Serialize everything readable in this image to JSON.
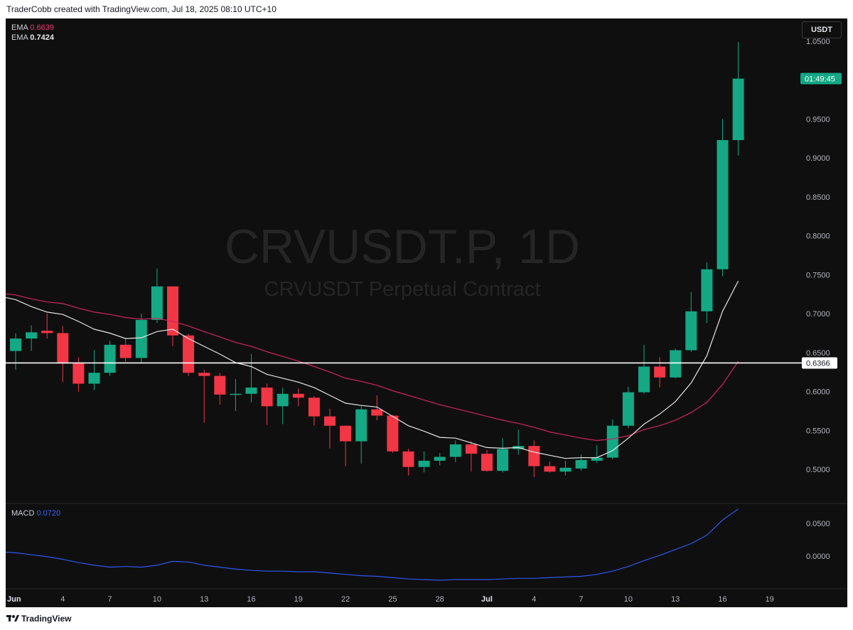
{
  "header": {
    "credit": "TraderCobb created with TradingView.com, Jul 18, 2025 08:10 UTC+10"
  },
  "legend": {
    "ema_label_a": "EMA",
    "ema_value_a": "0.6639",
    "ema_label_b": "EMA",
    "ema_value_b": "0.7424",
    "macd_label": "MACD",
    "macd_value": "0.0720"
  },
  "currency_button": "USDT",
  "countdown": "01:49:45",
  "footer": {
    "brand": "TradingView"
  },
  "chart_data": {
    "type": "candlestick",
    "title": "CRVUSDT.P, 1D",
    "subtitle": "CRVUSDT Perpetual Contract",
    "y_ticks": [
      "1.0500",
      "0.9500",
      "0.9000",
      "0.8500",
      "0.8000",
      "0.7500",
      "0.7000",
      "0.6500",
      "0.6000",
      "0.5500",
      "0.5000"
    ],
    "y_tick_values": [
      1.05,
      0.95,
      0.9,
      0.85,
      0.8,
      0.75,
      0.7,
      0.65,
      0.6,
      0.55,
      0.5
    ],
    "ylim": [
      0.46,
      1.07
    ],
    "x_ticks": [
      {
        "label": "Jun",
        "i": 0
      },
      {
        "label": "4",
        "i": 3
      },
      {
        "label": "7",
        "i": 6
      },
      {
        "label": "10",
        "i": 9
      },
      {
        "label": "13",
        "i": 12
      },
      {
        "label": "16",
        "i": 15
      },
      {
        "label": "19",
        "i": 18
      },
      {
        "label": "22",
        "i": 21
      },
      {
        "label": "25",
        "i": 24
      },
      {
        "label": "28",
        "i": 27
      },
      {
        "label": "Jul",
        "i": 30
      },
      {
        "label": "4",
        "i": 33
      },
      {
        "label": "7",
        "i": 36
      },
      {
        "label": "10",
        "i": 39
      },
      {
        "label": "13",
        "i": 42
      },
      {
        "label": "16",
        "i": 45
      },
      {
        "label": "19",
        "i": 48
      }
    ],
    "horizontal_line": {
      "value": 0.6366,
      "label": "0.6366"
    },
    "candles": [
      {
        "o": 0.652,
        "h": 0.675,
        "l": 0.628,
        "c": 0.668
      },
      {
        "o": 0.668,
        "h": 0.685,
        "l": 0.652,
        "c": 0.676
      },
      {
        "o": 0.678,
        "h": 0.7,
        "l": 0.668,
        "c": 0.675
      },
      {
        "o": 0.675,
        "h": 0.684,
        "l": 0.612,
        "c": 0.636
      },
      {
        "o": 0.636,
        "h": 0.644,
        "l": 0.6,
        "c": 0.61
      },
      {
        "o": 0.61,
        "h": 0.653,
        "l": 0.602,
        "c": 0.624
      },
      {
        "o": 0.624,
        "h": 0.665,
        "l": 0.62,
        "c": 0.66
      },
      {
        "o": 0.66,
        "h": 0.668,
        "l": 0.638,
        "c": 0.643
      },
      {
        "o": 0.643,
        "h": 0.7,
        "l": 0.637,
        "c": 0.692
      },
      {
        "o": 0.692,
        "h": 0.758,
        "l": 0.688,
        "c": 0.735
      },
      {
        "o": 0.735,
        "h": 0.735,
        "l": 0.658,
        "c": 0.672
      },
      {
        "o": 0.672,
        "h": 0.674,
        "l": 0.62,
        "c": 0.624
      },
      {
        "o": 0.624,
        "h": 0.628,
        "l": 0.56,
        "c": 0.62
      },
      {
        "o": 0.62,
        "h": 0.624,
        "l": 0.583,
        "c": 0.596
      },
      {
        "o": 0.596,
        "h": 0.616,
        "l": 0.575,
        "c": 0.597
      },
      {
        "o": 0.597,
        "h": 0.648,
        "l": 0.586,
        "c": 0.605
      },
      {
        "o": 0.605,
        "h": 0.61,
        "l": 0.557,
        "c": 0.581
      },
      {
        "o": 0.581,
        "h": 0.605,
        "l": 0.558,
        "c": 0.597
      },
      {
        "o": 0.597,
        "h": 0.604,
        "l": 0.581,
        "c": 0.592
      },
      {
        "o": 0.592,
        "h": 0.594,
        "l": 0.556,
        "c": 0.568
      },
      {
        "o": 0.568,
        "h": 0.578,
        "l": 0.527,
        "c": 0.556
      },
      {
        "o": 0.556,
        "h": 0.556,
        "l": 0.504,
        "c": 0.536
      },
      {
        "o": 0.536,
        "h": 0.581,
        "l": 0.507,
        "c": 0.577
      },
      {
        "o": 0.577,
        "h": 0.595,
        "l": 0.563,
        "c": 0.569
      },
      {
        "o": 0.569,
        "h": 0.57,
        "l": 0.521,
        "c": 0.523
      },
      {
        "o": 0.523,
        "h": 0.526,
        "l": 0.492,
        "c": 0.503
      },
      {
        "o": 0.503,
        "h": 0.523,
        "l": 0.496,
        "c": 0.511
      },
      {
        "o": 0.511,
        "h": 0.521,
        "l": 0.505,
        "c": 0.516
      },
      {
        "o": 0.516,
        "h": 0.537,
        "l": 0.509,
        "c": 0.532
      },
      {
        "o": 0.532,
        "h": 0.536,
        "l": 0.497,
        "c": 0.52
      },
      {
        "o": 0.52,
        "h": 0.525,
        "l": 0.497,
        "c": 0.498
      },
      {
        "o": 0.498,
        "h": 0.54,
        "l": 0.496,
        "c": 0.526
      },
      {
        "o": 0.526,
        "h": 0.551,
        "l": 0.519,
        "c": 0.53
      },
      {
        "o": 0.53,
        "h": 0.537,
        "l": 0.49,
        "c": 0.504
      },
      {
        "o": 0.504,
        "h": 0.51,
        "l": 0.496,
        "c": 0.497
      },
      {
        "o": 0.497,
        "h": 0.511,
        "l": 0.492,
        "c": 0.502
      },
      {
        "o": 0.501,
        "h": 0.519,
        "l": 0.498,
        "c": 0.512
      },
      {
        "o": 0.511,
        "h": 0.531,
        "l": 0.508,
        "c": 0.515
      },
      {
        "o": 0.515,
        "h": 0.564,
        "l": 0.513,
        "c": 0.556
      },
      {
        "o": 0.556,
        "h": 0.606,
        "l": 0.553,
        "c": 0.599
      },
      {
        "o": 0.599,
        "h": 0.66,
        "l": 0.597,
        "c": 0.632
      },
      {
        "o": 0.632,
        "h": 0.644,
        "l": 0.605,
        "c": 0.618
      },
      {
        "o": 0.618,
        "h": 0.655,
        "l": 0.617,
        "c": 0.653
      },
      {
        "o": 0.653,
        "h": 0.728,
        "l": 0.651,
        "c": 0.703
      },
      {
        "o": 0.703,
        "h": 0.766,
        "l": 0.688,
        "c": 0.757
      },
      {
        "o": 0.757,
        "h": 0.95,
        "l": 0.748,
        "c": 0.923
      },
      {
        "o": 0.923,
        "h": 1.049,
        "l": 0.903,
        "c": 1.002
      }
    ],
    "ema_a": [
      0.724,
      0.719,
      0.715,
      0.713,
      0.707,
      0.702,
      0.699,
      0.695,
      0.693,
      0.694,
      0.69,
      0.684,
      0.677,
      0.67,
      0.663,
      0.658,
      0.651,
      0.645,
      0.639,
      0.632,
      0.625,
      0.617,
      0.613,
      0.608,
      0.601,
      0.595,
      0.589,
      0.583,
      0.578,
      0.573,
      0.568,
      0.563,
      0.559,
      0.554,
      0.548,
      0.544,
      0.54,
      0.537,
      0.539,
      0.543,
      0.551,
      0.556,
      0.563,
      0.573,
      0.586,
      0.609,
      0.639
    ],
    "ema_b": [
      0.718,
      0.709,
      0.702,
      0.699,
      0.69,
      0.68,
      0.675,
      0.668,
      0.669,
      0.677,
      0.68,
      0.668,
      0.658,
      0.648,
      0.637,
      0.632,
      0.622,
      0.617,
      0.612,
      0.605,
      0.595,
      0.585,
      0.582,
      0.58,
      0.568,
      0.556,
      0.549,
      0.541,
      0.54,
      0.534,
      0.528,
      0.527,
      0.528,
      0.522,
      0.518,
      0.514,
      0.515,
      0.515,
      0.524,
      0.54,
      0.558,
      0.571,
      0.587,
      0.611,
      0.646,
      0.703,
      0.742
    ],
    "macd": {
      "y_ticks": [
        "0.0500",
        "0.0000"
      ],
      "y_tick_values": [
        0.05,
        0.0
      ],
      "ylim": [
        -0.045,
        0.077
      ],
      "values": [
        0.005,
        0.002,
        -0.001,
        -0.005,
        -0.01,
        -0.014,
        -0.017,
        -0.016,
        -0.017,
        -0.014,
        -0.008,
        -0.009,
        -0.014,
        -0.017,
        -0.02,
        -0.022,
        -0.023,
        -0.023,
        -0.024,
        -0.024,
        -0.026,
        -0.028,
        -0.03,
        -0.031,
        -0.033,
        -0.035,
        -0.036,
        -0.037,
        -0.036,
        -0.036,
        -0.036,
        -0.035,
        -0.034,
        -0.034,
        -0.033,
        -0.032,
        -0.031,
        -0.028,
        -0.023,
        -0.016,
        -0.007,
        0.001,
        0.01,
        0.019,
        0.032,
        0.055,
        0.072
      ]
    }
  }
}
